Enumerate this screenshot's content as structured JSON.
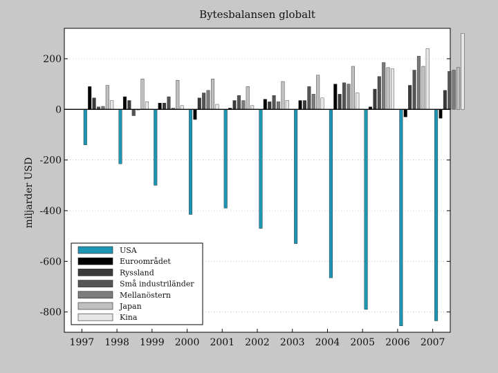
{
  "chart_data": {
    "type": "bar",
    "title": "Bytesbalansen globalt",
    "xlabel": "",
    "ylabel": "miljarder USD",
    "categories": [
      "1997",
      "1998",
      "1999",
      "2000",
      "2001",
      "2002",
      "2003",
      "2004",
      "2005",
      "2006",
      "2007"
    ],
    "ylim": [
      -880,
      320
    ],
    "yticks": [
      200,
      0,
      -200,
      -400,
      -600,
      -800
    ],
    "legend_position": "bottom-left",
    "series": [
      {
        "name": "USA",
        "color": "#1f95b4",
        "values": [
          -140,
          -215,
          -300,
          -415,
          -390,
          -470,
          -530,
          -665,
          -790,
          -855,
          -835
        ]
      },
      {
        "name": "Euroområdet",
        "color": "#000000",
        "values": [
          90,
          50,
          25,
          -40,
          5,
          40,
          35,
          100,
          10,
          -30,
          -35
        ]
      },
      {
        "name": "Ryssland",
        "color": "#3a3a3a",
        "values": [
          45,
          35,
          25,
          45,
          35,
          30,
          35,
          60,
          80,
          95,
          75
        ]
      },
      {
        "name": "Små industriländer",
        "color": "#555555",
        "values": [
          10,
          -25,
          50,
          65,
          55,
          55,
          90,
          105,
          130,
          155,
          150
        ]
      },
      {
        "name": "Mellanöstern",
        "color": "#7c7c7c",
        "values": [
          12,
          0,
          5,
          75,
          35,
          30,
          60,
          100,
          185,
          210,
          155
        ]
      },
      {
        "name": "Japan",
        "color": "#c0c0c0",
        "values": [
          95,
          120,
          115,
          120,
          90,
          110,
          135,
          170,
          165,
          170,
          165
        ]
      },
      {
        "name": "Kina",
        "color": "#e6e6e6",
        "values": [
          35,
          30,
          15,
          20,
          15,
          35,
          45,
          65,
          160,
          240,
          300
        ]
      }
    ]
  }
}
